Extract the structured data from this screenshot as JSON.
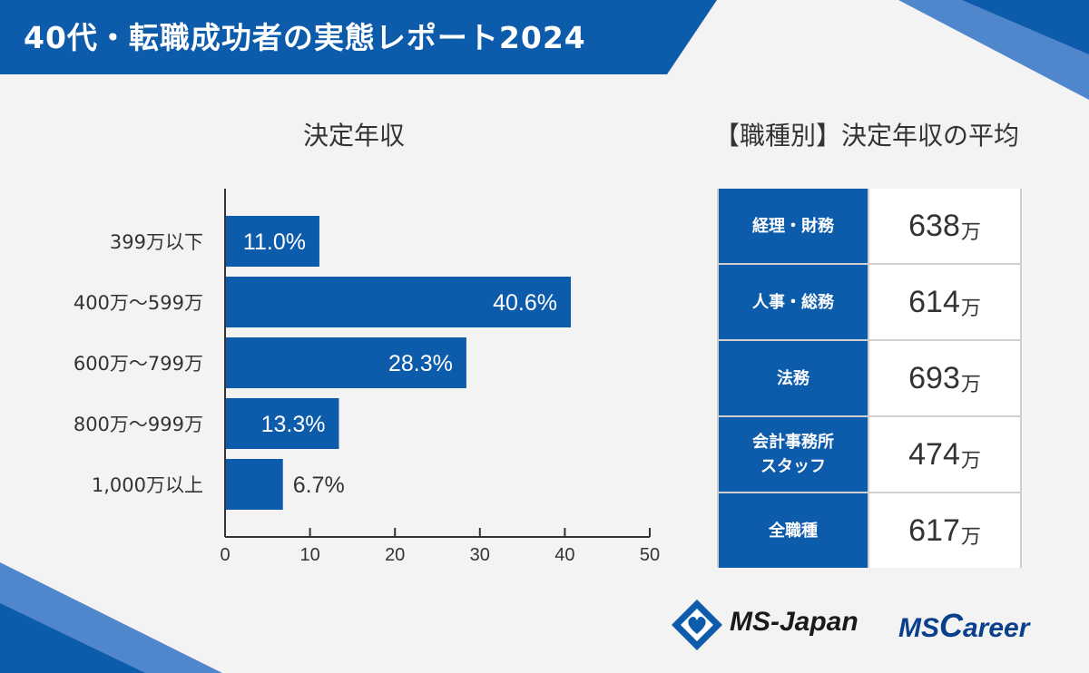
{
  "header": {
    "title": "40代・転職成功者の実態レポート2024"
  },
  "colors": {
    "brand": "#0d5bab",
    "dark_blue": "#0a3f8c",
    "ink": "#333333",
    "logo_black": "#1a1a1a"
  },
  "left_panel": {
    "title": "決定年収"
  },
  "right_panel": {
    "title": "【職種別】決定年収の平均"
  },
  "chart_data": {
    "type": "bar",
    "orientation": "horizontal",
    "title": "決定年収",
    "categories": [
      "399万以下",
      "400万～599万",
      "600万～799万",
      "800万～999万",
      "1,000万以上"
    ],
    "values": [
      11.0,
      40.6,
      28.3,
      13.3,
      6.7
    ],
    "value_labels": [
      "11.0%",
      "40.6%",
      "28.3%",
      "13.3%",
      "6.7%"
    ],
    "xlim": [
      0,
      50
    ],
    "xticks": [
      "0",
      "10",
      "20",
      "30",
      "40",
      "50"
    ],
    "xlabel": "",
    "ylabel": "",
    "grid": false
  },
  "table": {
    "unit": "万",
    "rows": [
      {
        "label": "経理・財務",
        "label_line2": "",
        "value": "638"
      },
      {
        "label": "人事・総務",
        "label_line2": "",
        "value": "614"
      },
      {
        "label": "法務",
        "label_line2": "",
        "value": "693"
      },
      {
        "label": "会計事務所",
        "label_line2": "スタッフ",
        "value": "474"
      },
      {
        "label": "全職種",
        "label_line2": "",
        "value": "617"
      }
    ]
  },
  "logos": {
    "ms_japan": "MS-Japan",
    "ms_career_ms": "MS",
    "ms_career_c": "C",
    "ms_career_rest": "areer"
  }
}
